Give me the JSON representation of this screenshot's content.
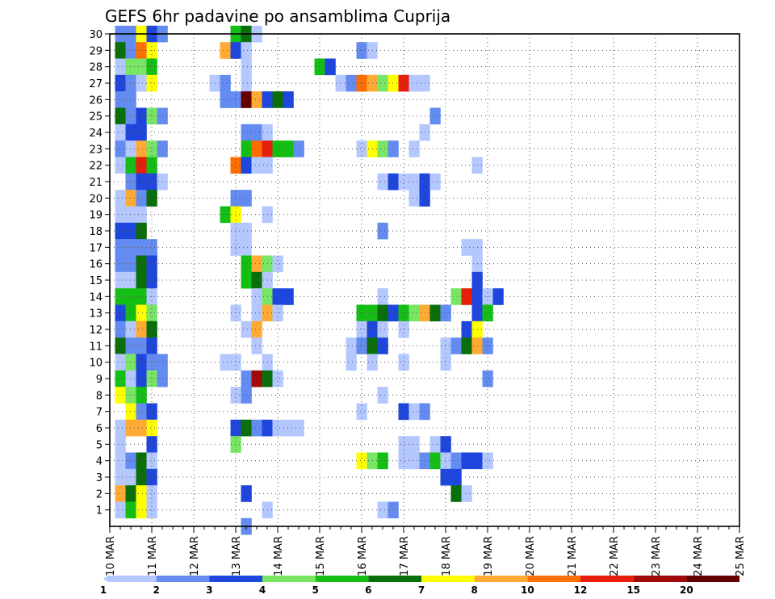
{
  "chart_data": {
    "type": "heatmap",
    "title": "GEFS 6hr padavine po ansamblima Cuprija",
    "x_ticks": [
      "10 MAR",
      "11 MAR",
      "12 MAR",
      "13 MAR",
      "14 MAR",
      "15 MAR",
      "16 MAR",
      "17 MAR",
      "18 MAR",
      "19 MAR",
      "20 MAR",
      "21 MAR",
      "22 MAR",
      "23 MAR",
      "24 MAR",
      "25 MAR"
    ],
    "y_ticks": [
      "1",
      "2",
      "3",
      "4",
      "5",
      "6",
      "7",
      "8",
      "9",
      "10",
      "11",
      "12",
      "13",
      "14",
      "15",
      "16",
      "17",
      "18",
      "19",
      "20",
      "21",
      "22",
      "23",
      "24",
      "25",
      "26",
      "27",
      "28",
      "29",
      "30"
    ],
    "x_range": [
      0,
      60
    ],
    "y_range": [
      0,
      30
    ],
    "grid": true,
    "colorbar": {
      "labels": [
        "1",
        "2",
        "3",
        "4",
        "5",
        "6",
        "7",
        "8",
        "10",
        "12",
        "15",
        "20"
      ],
      "colors": [
        "#b4c8ff",
        "#648cf0",
        "#1e46dc",
        "#78e664",
        "#14be14",
        "#0a6e0a",
        "#ffff00",
        "#ffaa32",
        "#ff6e00",
        "#e61e0a",
        "#a00a0a",
        "#640000"
      ]
    },
    "cells": [
      [
        30,
        1,
        2
      ],
      [
        30,
        2,
        2
      ],
      [
        30,
        3,
        7
      ],
      [
        30,
        4,
        3
      ],
      [
        30,
        5,
        2
      ],
      [
        30,
        12,
        5
      ],
      [
        30,
        13,
        6
      ],
      [
        30,
        14,
        1
      ],
      [
        29,
        1,
        6
      ],
      [
        29,
        2,
        2
      ],
      [
        29,
        3,
        9
      ],
      [
        29,
        4,
        7
      ],
      [
        29,
        11,
        8
      ],
      [
        29,
        12,
        3
      ],
      [
        29,
        13,
        1
      ],
      [
        29,
        24,
        2
      ],
      [
        29,
        25,
        1
      ],
      [
        28,
        1,
        1
      ],
      [
        28,
        2,
        4
      ],
      [
        28,
        3,
        4
      ],
      [
        28,
        4,
        5
      ],
      [
        28,
        13,
        1
      ],
      [
        28,
        20,
        5
      ],
      [
        28,
        21,
        3
      ],
      [
        27,
        1,
        3
      ],
      [
        27,
        2,
        2
      ],
      [
        27,
        3,
        1
      ],
      [
        27,
        4,
        7
      ],
      [
        27,
        10,
        1
      ],
      [
        27,
        11,
        2
      ],
      [
        27,
        13,
        1
      ],
      [
        27,
        22,
        1
      ],
      [
        27,
        23,
        2
      ],
      [
        27,
        24,
        9
      ],
      [
        27,
        25,
        8
      ],
      [
        27,
        26,
        4
      ],
      [
        27,
        27,
        7
      ],
      [
        27,
        28,
        10
      ],
      [
        27,
        29,
        1
      ],
      [
        27,
        30,
        1
      ],
      [
        26,
        1,
        2
      ],
      [
        26,
        2,
        2
      ],
      [
        26,
        11,
        2
      ],
      [
        26,
        12,
        2
      ],
      [
        26,
        13,
        12
      ],
      [
        26,
        14,
        8
      ],
      [
        26,
        15,
        3
      ],
      [
        26,
        16,
        6
      ],
      [
        26,
        17,
        3
      ],
      [
        25,
        1,
        6
      ],
      [
        25,
        2,
        2
      ],
      [
        25,
        3,
        3
      ],
      [
        25,
        4,
        4
      ],
      [
        25,
        5,
        2
      ],
      [
        25,
        31,
        2
      ],
      [
        24,
        1,
        1
      ],
      [
        24,
        2,
        3
      ],
      [
        24,
        3,
        3
      ],
      [
        24,
        13,
        2
      ],
      [
        24,
        14,
        2
      ],
      [
        24,
        15,
        1
      ],
      [
        24,
        30,
        1
      ],
      [
        23,
        1,
        2
      ],
      [
        23,
        2,
        1
      ],
      [
        23,
        3,
        8
      ],
      [
        23,
        4,
        4
      ],
      [
        23,
        5,
        2
      ],
      [
        23,
        13,
        5
      ],
      [
        23,
        14,
        9
      ],
      [
        23,
        15,
        10
      ],
      [
        23,
        16,
        5
      ],
      [
        23,
        17,
        5
      ],
      [
        23,
        18,
        2
      ],
      [
        23,
        24,
        1
      ],
      [
        23,
        25,
        7
      ],
      [
        23,
        26,
        4
      ],
      [
        23,
        27,
        2
      ],
      [
        23,
        29,
        1
      ],
      [
        22,
        1,
        1
      ],
      [
        22,
        2,
        5
      ],
      [
        22,
        3,
        10
      ],
      [
        22,
        4,
        5
      ],
      [
        22,
        12,
        9
      ],
      [
        22,
        13,
        3
      ],
      [
        22,
        14,
        1
      ],
      [
        22,
        15,
        1
      ],
      [
        22,
        35,
        1
      ],
      [
        21,
        2,
        2
      ],
      [
        21,
        3,
        3
      ],
      [
        21,
        4,
        3
      ],
      [
        21,
        5,
        1
      ],
      [
        21,
        26,
        1
      ],
      [
        21,
        27,
        3
      ],
      [
        21,
        28,
        1
      ],
      [
        21,
        29,
        1
      ],
      [
        21,
        30,
        3
      ],
      [
        21,
        31,
        1
      ],
      [
        20,
        1,
        1
      ],
      [
        20,
        2,
        8
      ],
      [
        20,
        3,
        2
      ],
      [
        20,
        4,
        6
      ],
      [
        20,
        12,
        2
      ],
      [
        20,
        13,
        2
      ],
      [
        20,
        29,
        1
      ],
      [
        20,
        30,
        3
      ],
      [
        19,
        1,
        1
      ],
      [
        19,
        2,
        1
      ],
      [
        19,
        3,
        1
      ],
      [
        19,
        11,
        5
      ],
      [
        19,
        12,
        7
      ],
      [
        19,
        15,
        1
      ],
      [
        18,
        1,
        3
      ],
      [
        18,
        2,
        3
      ],
      [
        18,
        3,
        6
      ],
      [
        18,
        12,
        1
      ],
      [
        18,
        13,
        1
      ],
      [
        18,
        26,
        2
      ],
      [
        17,
        1,
        2
      ],
      [
        17,
        2,
        2
      ],
      [
        17,
        3,
        2
      ],
      [
        17,
        4,
        2
      ],
      [
        17,
        12,
        1
      ],
      [
        17,
        13,
        1
      ],
      [
        17,
        34,
        1
      ],
      [
        17,
        35,
        1
      ],
      [
        16,
        1,
        2
      ],
      [
        16,
        2,
        2
      ],
      [
        16,
        3,
        6
      ],
      [
        16,
        4,
        3
      ],
      [
        16,
        13,
        5
      ],
      [
        16,
        14,
        8
      ],
      [
        16,
        15,
        4
      ],
      [
        16,
        16,
        1
      ],
      [
        16,
        35,
        1
      ],
      [
        15,
        1,
        1
      ],
      [
        15,
        2,
        1
      ],
      [
        15,
        3,
        6
      ],
      [
        15,
        4,
        3
      ],
      [
        15,
        13,
        5
      ],
      [
        15,
        14,
        6
      ],
      [
        15,
        15,
        1
      ],
      [
        15,
        35,
        3
      ],
      [
        14,
        1,
        5
      ],
      [
        14,
        2,
        5
      ],
      [
        14,
        3,
        5
      ],
      [
        14,
        4,
        1
      ],
      [
        14,
        14,
        1
      ],
      [
        14,
        15,
        4
      ],
      [
        14,
        16,
        3
      ],
      [
        14,
        17,
        3
      ],
      [
        14,
        26,
        1
      ],
      [
        14,
        33,
        4
      ],
      [
        14,
        34,
        10
      ],
      [
        14,
        35,
        3
      ],
      [
        14,
        36,
        1
      ],
      [
        14,
        37,
        3
      ],
      [
        13,
        1,
        3
      ],
      [
        13,
        2,
        5
      ],
      [
        13,
        3,
        7
      ],
      [
        13,
        4,
        4
      ],
      [
        13,
        12,
        1
      ],
      [
        13,
        14,
        1
      ],
      [
        13,
        15,
        8
      ],
      [
        13,
        16,
        1
      ],
      [
        13,
        24,
        5
      ],
      [
        13,
        25,
        5
      ],
      [
        13,
        26,
        6
      ],
      [
        13,
        27,
        3
      ],
      [
        13,
        28,
        5
      ],
      [
        13,
        29,
        4
      ],
      [
        13,
        30,
        8
      ],
      [
        13,
        31,
        6
      ],
      [
        13,
        32,
        2
      ],
      [
        13,
        35,
        3
      ],
      [
        13,
        36,
        5
      ],
      [
        12,
        1,
        2
      ],
      [
        12,
        2,
        1
      ],
      [
        12,
        3,
        8
      ],
      [
        12,
        4,
        6
      ],
      [
        12,
        13,
        1
      ],
      [
        12,
        14,
        8
      ],
      [
        12,
        24,
        1
      ],
      [
        12,
        25,
        3
      ],
      [
        12,
        26,
        1
      ],
      [
        12,
        28,
        1
      ],
      [
        12,
        34,
        3
      ],
      [
        12,
        35,
        7
      ],
      [
        11,
        1,
        6
      ],
      [
        11,
        2,
        2
      ],
      [
        11,
        3,
        2
      ],
      [
        11,
        4,
        3
      ],
      [
        11,
        14,
        1
      ],
      [
        11,
        23,
        1
      ],
      [
        11,
        24,
        2
      ],
      [
        11,
        25,
        6
      ],
      [
        11,
        26,
        3
      ],
      [
        11,
        32,
        1
      ],
      [
        11,
        33,
        2
      ],
      [
        11,
        34,
        6
      ],
      [
        11,
        35,
        8
      ],
      [
        11,
        36,
        2
      ],
      [
        10,
        1,
        1
      ],
      [
        10,
        2,
        4
      ],
      [
        10,
        3,
        3
      ],
      [
        10,
        4,
        2
      ],
      [
        10,
        5,
        2
      ],
      [
        10,
        11,
        1
      ],
      [
        10,
        12,
        1
      ],
      [
        10,
        15,
        1
      ],
      [
        10,
        23,
        1
      ],
      [
        10,
        25,
        1
      ],
      [
        10,
        28,
        1
      ],
      [
        10,
        32,
        1
      ],
      [
        9,
        1,
        5
      ],
      [
        9,
        2,
        1
      ],
      [
        9,
        3,
        3
      ],
      [
        9,
        4,
        4
      ],
      [
        9,
        5,
        2
      ],
      [
        9,
        13,
        2
      ],
      [
        9,
        14,
        11
      ],
      [
        9,
        15,
        6
      ],
      [
        9,
        16,
        1
      ],
      [
        9,
        36,
        2
      ],
      [
        8,
        1,
        7
      ],
      [
        8,
        2,
        4
      ],
      [
        8,
        3,
        5
      ],
      [
        8,
        12,
        1
      ],
      [
        8,
        13,
        2
      ],
      [
        8,
        26,
        1
      ],
      [
        7,
        2,
        7
      ],
      [
        7,
        3,
        2
      ],
      [
        7,
        4,
        3
      ],
      [
        7,
        24,
        1
      ],
      [
        7,
        28,
        3
      ],
      [
        7,
        29,
        1
      ],
      [
        7,
        30,
        2
      ],
      [
        6,
        1,
        1
      ],
      [
        6,
        2,
        8
      ],
      [
        6,
        3,
        8
      ],
      [
        6,
        4,
        7
      ],
      [
        6,
        12,
        3
      ],
      [
        6,
        13,
        6
      ],
      [
        6,
        14,
        2
      ],
      [
        6,
        15,
        3
      ],
      [
        6,
        16,
        1
      ],
      [
        6,
        17,
        1
      ],
      [
        6,
        18,
        1
      ],
      [
        5,
        1,
        1
      ],
      [
        5,
        4,
        3
      ],
      [
        5,
        12,
        4
      ],
      [
        5,
        28,
        1
      ],
      [
        5,
        29,
        1
      ],
      [
        5,
        31,
        1
      ],
      [
        5,
        32,
        3
      ],
      [
        4,
        1,
        1
      ],
      [
        4,
        2,
        2
      ],
      [
        4,
        3,
        6
      ],
      [
        4,
        4,
        1
      ],
      [
        4,
        24,
        7
      ],
      [
        4,
        25,
        4
      ],
      [
        4,
        26,
        5
      ],
      [
        4,
        28,
        1
      ],
      [
        4,
        29,
        1
      ],
      [
        4,
        30,
        2
      ],
      [
        4,
        31,
        5
      ],
      [
        4,
        32,
        1
      ],
      [
        4,
        33,
        2
      ],
      [
        4,
        34,
        3
      ],
      [
        4,
        35,
        3
      ],
      [
        4,
        36,
        1
      ],
      [
        3,
        1,
        1
      ],
      [
        3,
        2,
        1
      ],
      [
        3,
        3,
        6
      ],
      [
        3,
        4,
        3
      ],
      [
        3,
        32,
        3
      ],
      [
        3,
        33,
        3
      ],
      [
        2,
        1,
        8
      ],
      [
        2,
        2,
        6
      ],
      [
        2,
        3,
        7
      ],
      [
        2,
        4,
        1
      ],
      [
        2,
        13,
        3
      ],
      [
        2,
        33,
        6
      ],
      [
        2,
        34,
        1
      ],
      [
        1,
        1,
        1
      ],
      [
        1,
        2,
        5
      ],
      [
        1,
        3,
        7
      ],
      [
        1,
        4,
        1
      ],
      [
        1,
        15,
        1
      ],
      [
        1,
        26,
        1
      ],
      [
        1,
        27,
        2
      ],
      [
        0,
        13,
        2
      ]
    ]
  }
}
